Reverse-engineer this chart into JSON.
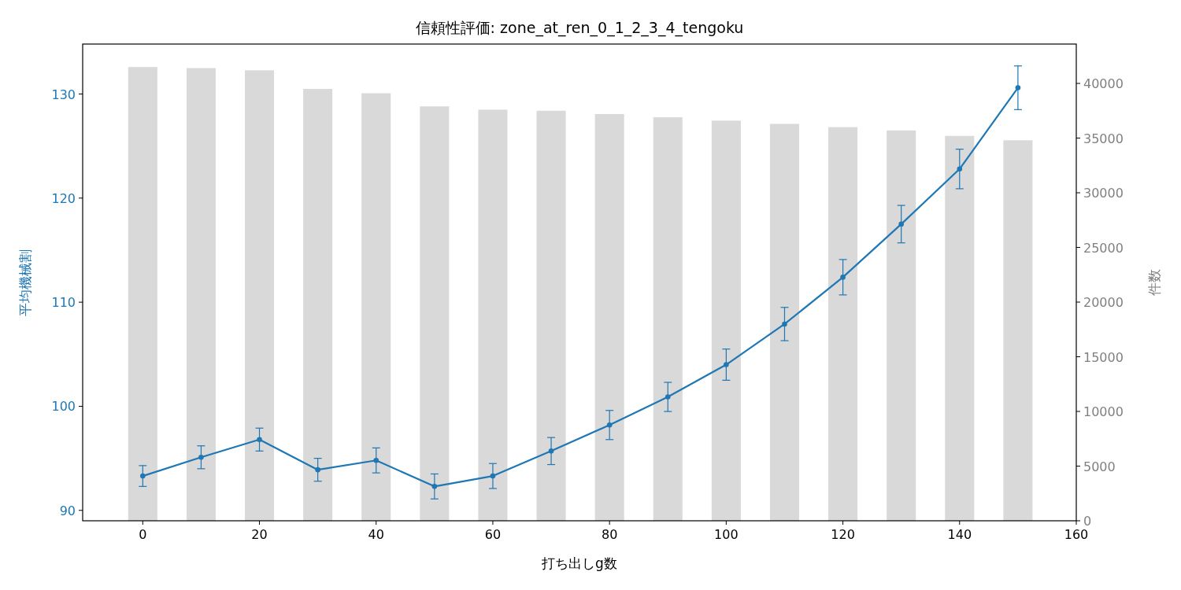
{
  "chart_data": {
    "type": "line",
    "title": "信頼性評価: zone_at_ren_0_1_2_3_4_tengoku",
    "xlabel": "打ち出しg数",
    "ylabel": "平均機械割",
    "y2label": "件数",
    "x": [
      0,
      10,
      20,
      30,
      40,
      50,
      60,
      70,
      80,
      90,
      100,
      110,
      120,
      130,
      140,
      150
    ],
    "xlim": [
      -10.3,
      160
    ],
    "xticks": [
      0,
      20,
      40,
      60,
      80,
      100,
      120,
      140,
      160
    ],
    "ylim": [
      89,
      134.8
    ],
    "yticks": [
      90,
      100,
      110,
      120,
      130
    ],
    "y2lim": [
      0,
      43600
    ],
    "y2ticks": [
      0,
      5000,
      10000,
      15000,
      20000,
      25000,
      30000,
      35000,
      40000
    ],
    "grid": false,
    "series": [
      {
        "type": "bar",
        "axis": "y2",
        "color": "#d9d9d9",
        "values": [
          41500,
          41400,
          41200,
          39500,
          39100,
          37900,
          37600,
          37500,
          37200,
          36900,
          36600,
          36300,
          36000,
          35700,
          35200,
          34800
        ]
      },
      {
        "color": "#1f77b4",
        "marker": "circle",
        "line_style": "solid",
        "values": [
          93.3,
          95.1,
          96.8,
          93.9,
          94.8,
          92.3,
          93.3,
          95.7,
          98.2,
          100.9,
          104.0,
          107.9,
          112.4,
          117.5,
          122.8,
          130.6
        ],
        "errors": [
          1.0,
          1.1,
          1.1,
          1.1,
          1.2,
          1.2,
          1.2,
          1.3,
          1.4,
          1.4,
          1.5,
          1.6,
          1.7,
          1.8,
          1.9,
          2.1
        ]
      }
    ]
  }
}
